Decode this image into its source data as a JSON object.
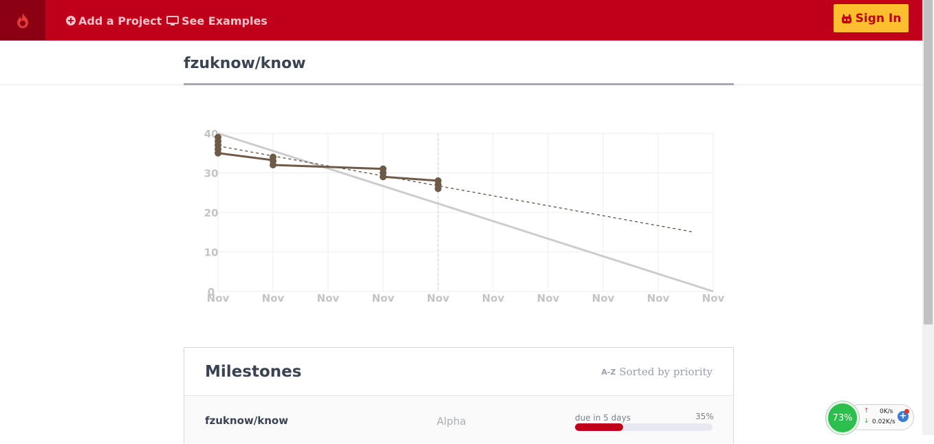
{
  "navbar": {
    "add_project": "Add a Project",
    "see_examples": "See Examples",
    "sign_in": "Sign In",
    "brand_color": "#c0001a",
    "accent_color": "#fdbf2d"
  },
  "project": {
    "title": "fzuknow/know"
  },
  "chart_data": {
    "type": "line",
    "x_tick_labels": [
      "Nov",
      "Nov",
      "Nov",
      "Nov",
      "Nov",
      "Nov",
      "Nov",
      "Nov",
      "Nov",
      "Nov"
    ],
    "y_ticks": [
      0,
      10,
      20,
      30,
      40
    ],
    "ylim": [
      0,
      40
    ],
    "grid": true,
    "series": [
      {
        "style": "solid-gray",
        "x": [
          0,
          9
        ],
        "y": [
          40,
          0
        ]
      },
      {
        "style": "dashed",
        "x": [
          0,
          8.65
        ],
        "y": [
          36.8,
          15
        ]
      },
      {
        "style": "solid-brown",
        "x": [
          0,
          1,
          1,
          3,
          3,
          4
        ],
        "y": [
          35,
          33.2,
          32,
          31,
          29,
          28
        ]
      },
      {
        "style": "points",
        "x": [
          0,
          0,
          0,
          0,
          0,
          1,
          1,
          1,
          3,
          3,
          3,
          4,
          4,
          4
        ],
        "y": [
          39,
          38,
          37,
          36,
          35,
          34,
          33,
          32,
          31,
          30,
          29,
          28,
          27,
          26
        ]
      }
    ],
    "today_marker_x": 4
  },
  "milestones": {
    "title": "Milestones",
    "sort_icon": "A-Z",
    "sort_label": "Sorted by priority",
    "rows": [
      {
        "name": "fzuknow/know",
        "milestone": "Alpha",
        "due": "due in 5 days",
        "percent_label": "35%",
        "percent": 35
      }
    ]
  },
  "widget": {
    "percent": "73%",
    "up": "0K/s",
    "down": "0.02K/s"
  }
}
